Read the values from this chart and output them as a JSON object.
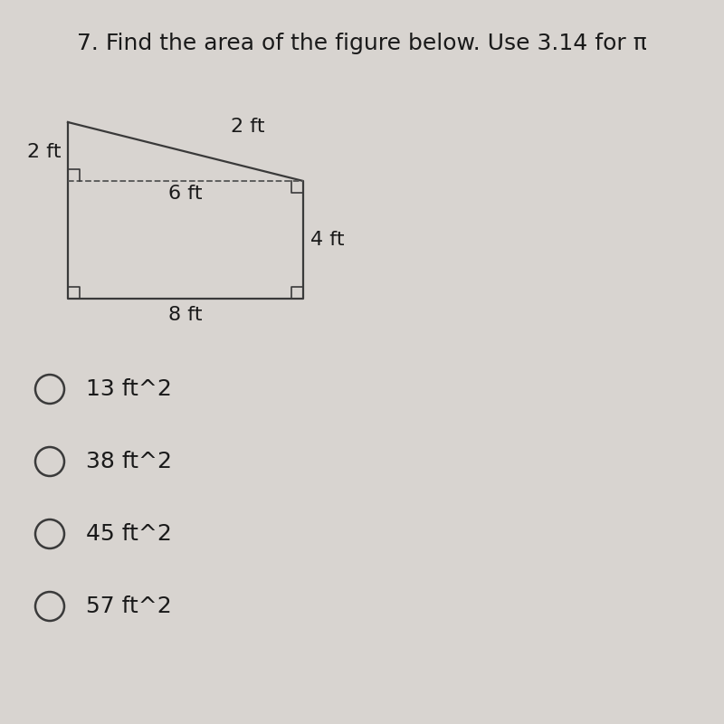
{
  "title": "7. Find the area of the figure below. Use 3.14 for π",
  "title_fontsize": 18,
  "bg_color": "#d8d4d0",
  "shape_color": "#3a3a3a",
  "shape_linewidth": 1.6,
  "dashed_color": "#555555",
  "label_fontsize": 16,
  "label_color": "#1a1a1a",
  "options": [
    "13 ft^2",
    "38 ft^2",
    "45 ft^2",
    "57 ft^2"
  ],
  "options_fontsize": 18,
  "ra_size": 0.012
}
